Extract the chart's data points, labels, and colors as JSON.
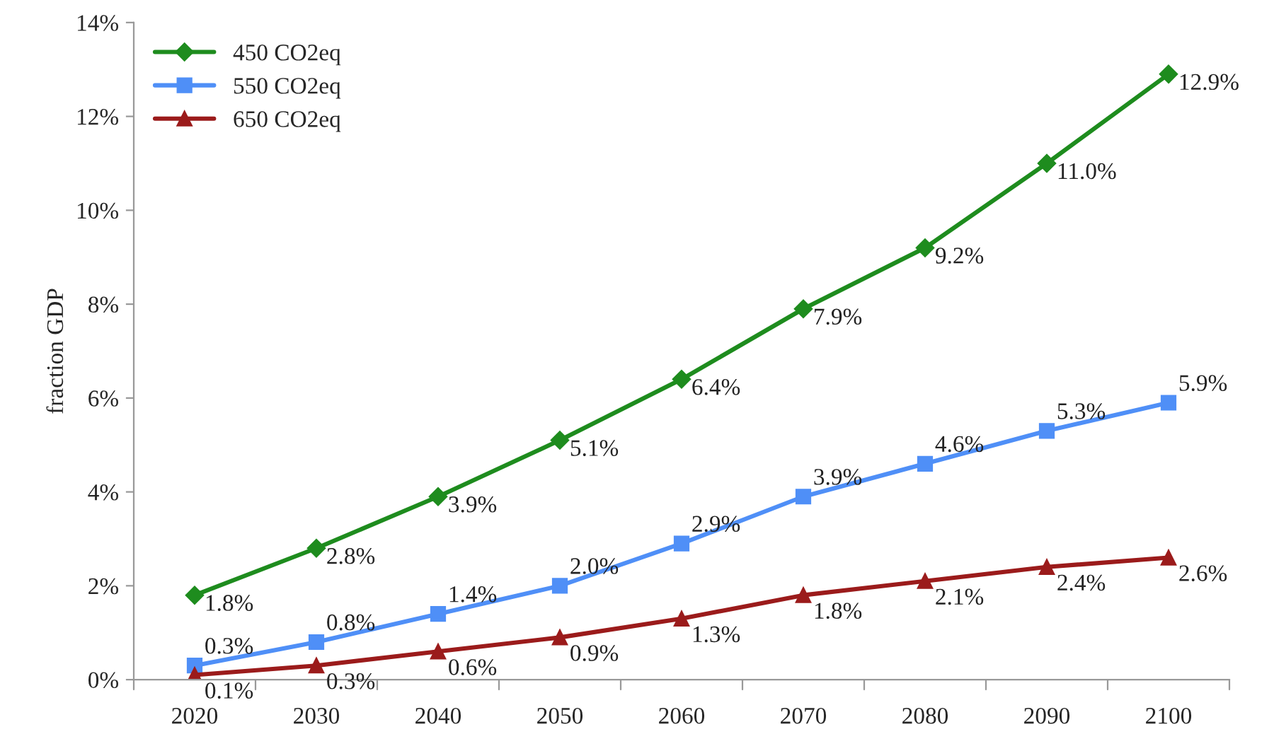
{
  "chart_data": {
    "type": "line",
    "ylabel": "fraction GDP",
    "categories": [
      "2020",
      "2030",
      "2040",
      "2050",
      "2060",
      "2070",
      "2080",
      "2090",
      "2100"
    ],
    "series": [
      {
        "name": "450 CO2eq",
        "color": "#1e8c1e",
        "marker": "diamond",
        "values": [
          1.8,
          2.8,
          3.9,
          5.1,
          6.4,
          7.9,
          9.2,
          11.0,
          12.9
        ],
        "value_labels": [
          "1.8%",
          "2.8%",
          "3.9%",
          "5.1%",
          "6.4%",
          "7.9%",
          "9.2%",
          "11.0%",
          "12.9%"
        ]
      },
      {
        "name": "550 CO2eq",
        "color": "#4f8ff7",
        "marker": "square",
        "values": [
          0.3,
          0.8,
          1.4,
          2.0,
          2.9,
          3.9,
          4.6,
          5.3,
          5.9
        ],
        "value_labels": [
          "0.3%",
          "0.8%",
          "1.4%",
          "2.0%",
          "2.9%",
          "3.9%",
          "4.6%",
          "5.3%",
          "5.9%"
        ]
      },
      {
        "name": "650 CO2eq",
        "color": "#9b1b1b",
        "marker": "triangle",
        "values": [
          0.1,
          0.3,
          0.6,
          0.9,
          1.3,
          1.8,
          2.1,
          2.4,
          2.6
        ],
        "value_labels": [
          "0.1%",
          "0.3%",
          "0.6%",
          "0.9%",
          "1.3%",
          "1.8%",
          "2.1%",
          "2.4%",
          "2.6%"
        ]
      }
    ],
    "ylim": [
      0,
      14
    ],
    "yticks": [
      {
        "value": 0,
        "label": "0%"
      },
      {
        "value": 2,
        "label": "2%"
      },
      {
        "value": 4,
        "label": "4%"
      },
      {
        "value": 6,
        "label": "6%"
      },
      {
        "value": 8,
        "label": "8%"
      },
      {
        "value": 10,
        "label": "10%"
      },
      {
        "value": 12,
        "label": "12%"
      },
      {
        "value": 14,
        "label": "14%"
      }
    ],
    "grid": false,
    "legend": "top left",
    "line_style": "solid"
  }
}
